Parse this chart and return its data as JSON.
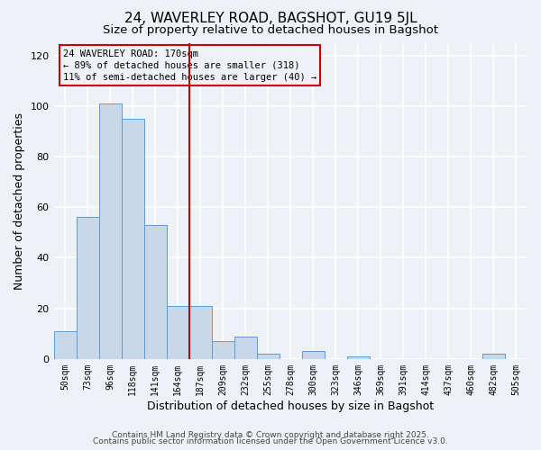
{
  "title": "24, WAVERLEY ROAD, BAGSHOT, GU19 5JL",
  "subtitle": "Size of property relative to detached houses in Bagshot",
  "xlabel": "Distribution of detached houses by size in Bagshot",
  "ylabel": "Number of detached properties",
  "bar_labels": [
    "50sqm",
    "73sqm",
    "96sqm",
    "118sqm",
    "141sqm",
    "164sqm",
    "187sqm",
    "209sqm",
    "232sqm",
    "255sqm",
    "278sqm",
    "300sqm",
    "323sqm",
    "346sqm",
    "369sqm",
    "391sqm",
    "414sqm",
    "437sqm",
    "460sqm",
    "482sqm",
    "505sqm"
  ],
  "bar_values": [
    11,
    56,
    101,
    95,
    53,
    21,
    21,
    7,
    9,
    2,
    0,
    3,
    0,
    1,
    0,
    0,
    0,
    0,
    0,
    2,
    0
  ],
  "bar_color": "#c8d8e8",
  "bar_edge_color": "#5b9bd5",
  "ylim": [
    0,
    125
  ],
  "yticks": [
    0,
    20,
    40,
    60,
    80,
    100,
    120
  ],
  "vline_x": 5.5,
  "vline_color": "#cc0000",
  "annotation_text_line1": "24 WAVERLEY ROAD: 170sqm",
  "annotation_text_line2": "← 89% of detached houses are smaller (318)",
  "annotation_text_line3": "11% of semi-detached houses are larger (40) →",
  "annotation_box_color": "#cc0000",
  "footer_line1": "Contains HM Land Registry data © Crown copyright and database right 2025.",
  "footer_line2": "Contains public sector information licensed under the Open Government Licence v3.0.",
  "background_color": "#eef2f7",
  "grid_color": "#ffffff",
  "title_fontsize": 11,
  "subtitle_fontsize": 9.5,
  "axis_label_fontsize": 9,
  "tick_fontsize": 7,
  "footer_fontsize": 6.5,
  "annotation_fontsize": 7.5
}
